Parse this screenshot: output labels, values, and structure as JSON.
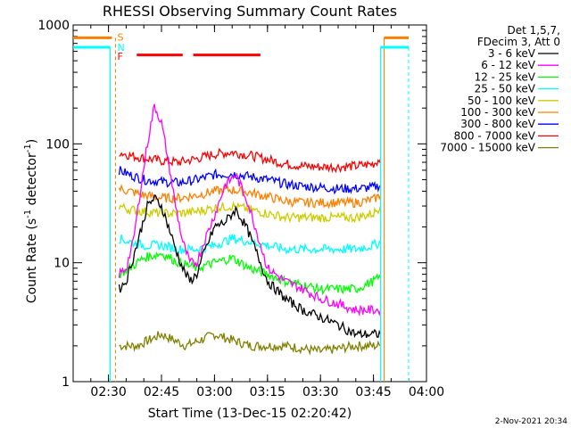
{
  "chart_data": {
    "type": "line",
    "title": "RHESSI Observing Summary Count Rates",
    "xlabel": "Start Time (13-Dec-15 02:20:42)",
    "ylabel": "Count Rate (s⁻¹ detector⁻¹)",
    "ylabel_main": "Count Rate (s",
    "ylabel_sup1": "-1",
    "ylabel_mid": " detector",
    "ylabel_sup2": "-1",
    "ylabel_end": ")",
    "y_scale": "log",
    "ylim": [
      1,
      1000
    ],
    "xlim": [
      "02:20",
      "04:00"
    ],
    "x_ticks": [
      "02:30",
      "02:45",
      "03:00",
      "03:15",
      "03:30",
      "03:45",
      "04:00"
    ],
    "y_ticks": [
      "1",
      "10",
      "100",
      "1000"
    ],
    "legend_header": [
      "Det 1,5,7,",
      "FDecim 3, Att 0"
    ],
    "legend_position": "right",
    "timestamp": "2-Nov-2021 20:34",
    "flag_markers": {
      "S": "S",
      "N": "N",
      "F": "F"
    },
    "flare_intervals": [
      [
        "02:38",
        "02:51"
      ],
      [
        "02:54",
        "03:13"
      ]
    ],
    "flare_color": "#ff0000",
    "saa_night_edges": {
      "start": "02:32",
      "end": "03:47"
    },
    "series": [
      {
        "name": "3 - 6 keV",
        "color": "#000000",
        "t": [
          "02:33",
          "02:35",
          "02:37",
          "02:39",
          "02:41",
          "02:43",
          "02:45",
          "02:47",
          "02:49",
          "02:51",
          "02:53",
          "02:55",
          "02:57",
          "03:00",
          "03:03",
          "03:06",
          "03:09",
          "03:12",
          "03:15",
          "03:20",
          "03:25",
          "03:30",
          "03:35",
          "03:40",
          "03:45",
          "03:47"
        ],
        "values": [
          6,
          7,
          11,
          18,
          30,
          35,
          30,
          20,
          13,
          9,
          7,
          8,
          12,
          20,
          22,
          28,
          20,
          12,
          7,
          5,
          4,
          3.5,
          3,
          2.5,
          2.5,
          2.5
        ]
      },
      {
        "name": "6 - 12 keV",
        "color": "#ff00ff",
        "t": [
          "02:33",
          "02:35",
          "02:37",
          "02:39",
          "02:41",
          "02:43",
          "02:45",
          "02:47",
          "02:49",
          "02:51",
          "02:53",
          "02:55",
          "02:57",
          "03:00",
          "03:03",
          "03:06",
          "03:09",
          "03:12",
          "03:15",
          "03:20",
          "03:25",
          "03:30",
          "03:35",
          "03:40",
          "03:45",
          "03:47"
        ],
        "values": [
          8,
          9,
          15,
          40,
          100,
          210,
          150,
          70,
          30,
          15,
          10,
          10,
          15,
          25,
          45,
          55,
          35,
          18,
          9,
          7,
          6,
          5,
          4.5,
          4,
          4,
          4
        ]
      },
      {
        "name": "12 - 25 keV",
        "color": "#00ff00",
        "t": [
          "02:33",
          "02:36",
          "02:40",
          "02:45",
          "02:50",
          "02:55",
          "03:00",
          "03:05",
          "03:10",
          "03:15",
          "03:20",
          "03:25",
          "03:30",
          "03:35",
          "03:40",
          "03:45",
          "03:47"
        ],
        "values": [
          8,
          9,
          11,
          12,
          10,
          9,
          10,
          11,
          9,
          8,
          7,
          6.5,
          6,
          6,
          6,
          7,
          7.5
        ]
      },
      {
        "name": "25 - 50 keV",
        "color": "#00ffff",
        "t": [
          "02:33",
          "02:36",
          "02:40",
          "02:45",
          "02:50",
          "02:55",
          "03:00",
          "03:05",
          "03:10",
          "03:15",
          "03:20",
          "03:25",
          "03:30",
          "03:35",
          "03:40",
          "03:45",
          "03:47"
        ],
        "values": [
          16,
          15,
          14,
          14,
          13,
          13,
          14,
          16,
          15,
          14,
          13,
          13,
          13,
          13,
          13,
          14,
          15
        ]
      },
      {
        "name": "50 - 100 keV",
        "color": "#cccc00",
        "t": [
          "02:33",
          "02:36",
          "02:40",
          "02:45",
          "02:50",
          "02:55",
          "03:00",
          "03:05",
          "03:10",
          "03:15",
          "03:20",
          "03:25",
          "03:30",
          "03:35",
          "03:40",
          "03:45",
          "03:47"
        ],
        "values": [
          30,
          28,
          27,
          26,
          26,
          27,
          29,
          30,
          28,
          26,
          24,
          24,
          24,
          24,
          24,
          26,
          30
        ]
      },
      {
        "name": "100 - 300 keV",
        "color": "#ff8000",
        "t": [
          "02:33",
          "02:36",
          "02:40",
          "02:45",
          "02:50",
          "02:55",
          "03:00",
          "03:05",
          "03:10",
          "03:15",
          "03:20",
          "03:25",
          "03:30",
          "03:35",
          "03:40",
          "03:45",
          "03:47"
        ],
        "values": [
          42,
          40,
          37,
          35,
          35,
          37,
          40,
          41,
          39,
          36,
          33,
          32,
          32,
          32,
          32,
          34,
          37
        ]
      },
      {
        "name": "300 - 800 keV",
        "color": "#0000ff",
        "t": [
          "02:33",
          "02:36",
          "02:40",
          "02:45",
          "02:50",
          "02:55",
          "03:00",
          "03:05",
          "03:10",
          "03:15",
          "03:20",
          "03:25",
          "03:30",
          "03:35",
          "03:40",
          "03:45",
          "03:47"
        ],
        "values": [
          60,
          55,
          50,
          48,
          47,
          50,
          55,
          56,
          53,
          50,
          46,
          44,
          43,
          42,
          42,
          43,
          45
        ]
      },
      {
        "name": "800 - 7000 keV",
        "color": "#ff0000",
        "t": [
          "02:33",
          "02:36",
          "02:40",
          "02:45",
          "02:50",
          "02:55",
          "03:00",
          "03:05",
          "03:10",
          "03:15",
          "03:20",
          "03:25",
          "03:30",
          "03:35",
          "03:40",
          "03:45",
          "03:47"
        ],
        "values": [
          85,
          80,
          76,
          72,
          70,
          75,
          82,
          85,
          80,
          74,
          68,
          65,
          64,
          64,
          65,
          68,
          75
        ]
      },
      {
        "name": "7000 - 15000 keV",
        "color": "#808000",
        "t": [
          "02:33",
          "02:38",
          "02:45",
          "02:52",
          "03:00",
          "03:10",
          "03:20",
          "03:30",
          "03:40",
          "03:45",
          "03:47"
        ],
        "values": [
          2,
          2,
          2.5,
          2,
          2.5,
          2,
          2,
          1.8,
          2,
          2,
          2
        ]
      }
    ]
  }
}
